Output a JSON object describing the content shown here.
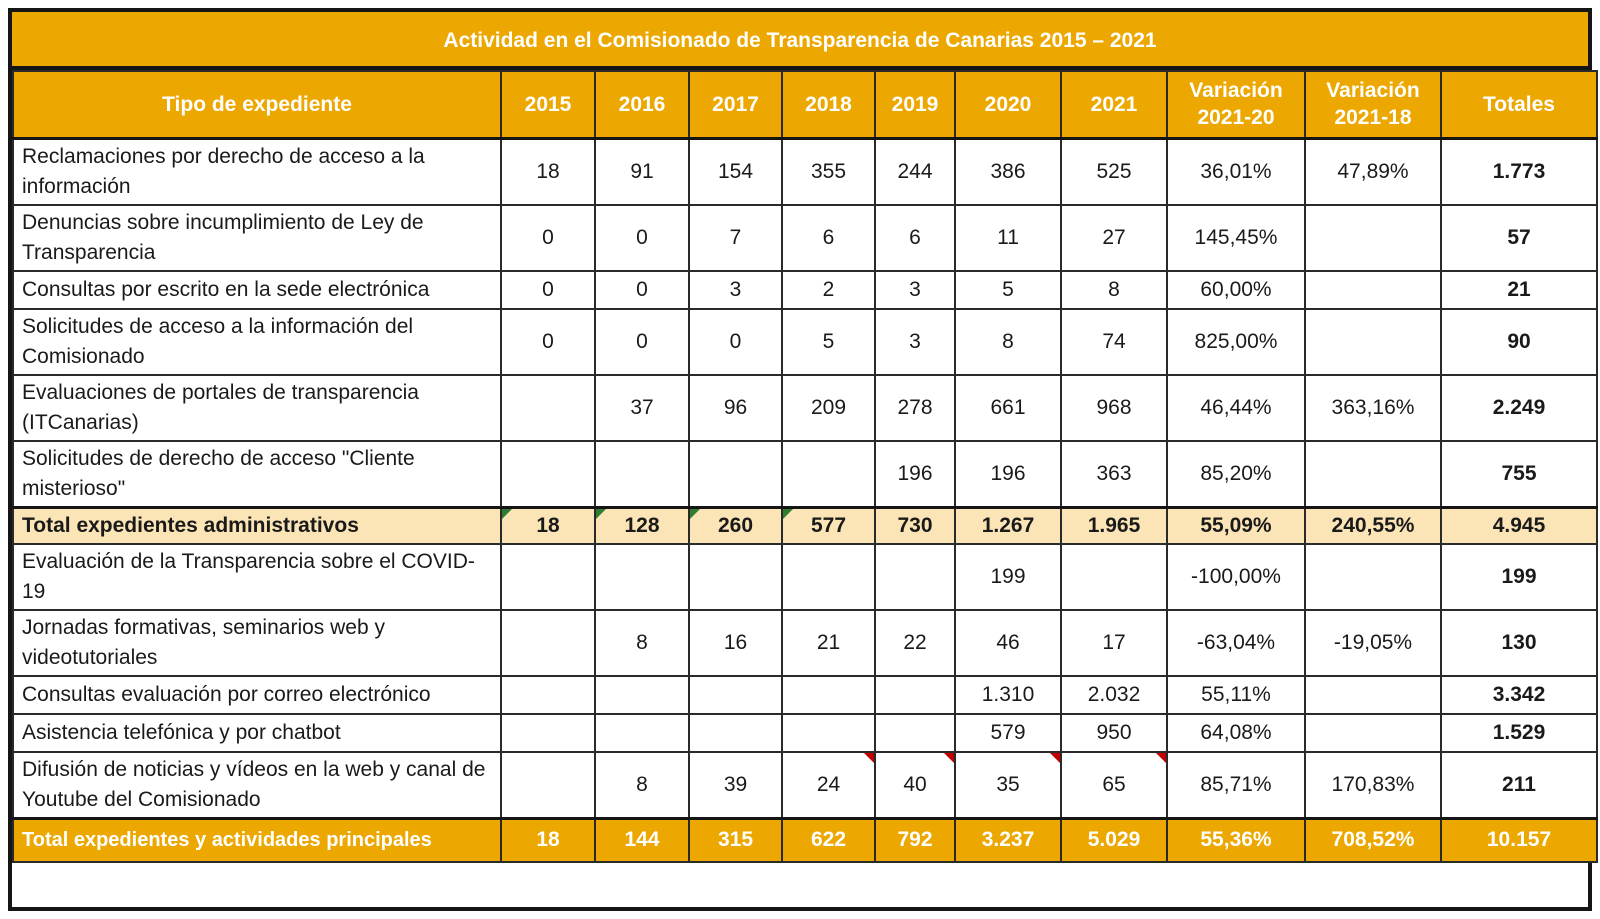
{
  "title": "Actividad en el Comisionado de Transparencia de Canarias 2015 – 2021",
  "colors": {
    "accent_orange": "#ECA800",
    "subtotal_cream": "#FBE5B6",
    "comment_marker_green": "#2E7D32",
    "comment_marker_red": "#C00000",
    "grid_line": "#2A2A2A",
    "outer_border": "#151515",
    "header_text": "#FFFFFF",
    "body_text": "#1A1A1A"
  },
  "table": {
    "columns": [
      {
        "label": "Tipo de expediente",
        "sub": ""
      },
      {
        "label": "2015",
        "sub": ""
      },
      {
        "label": "2016",
        "sub": ""
      },
      {
        "label": "2017",
        "sub": ""
      },
      {
        "label": "2018",
        "sub": ""
      },
      {
        "label": "2019",
        "sub": ""
      },
      {
        "label": "2020",
        "sub": ""
      },
      {
        "label": "2021",
        "sub": ""
      },
      {
        "label": "Variación",
        "sub": "2021-20"
      },
      {
        "label": "Variación",
        "sub": "2021-18"
      },
      {
        "label": "Totales",
        "sub": ""
      }
    ],
    "rows": [
      {
        "label": "Reclamaciones por derecho de acceso a la información",
        "values": [
          "18",
          "91",
          "154",
          "355",
          "244",
          "386",
          "525",
          "36,01%",
          "47,89%",
          "1.773"
        ],
        "style": "normal",
        "green_markers": [],
        "red_markers": []
      },
      {
        "label": "Denuncias sobre incumplimiento de Ley de Transparencia",
        "values": [
          "0",
          "0",
          "7",
          "6",
          "6",
          "11",
          "27",
          "145,45%",
          "",
          "57"
        ],
        "style": "normal",
        "green_markers": [],
        "red_markers": []
      },
      {
        "label": "Consultas por escrito en la sede electrónica",
        "values": [
          "0",
          "0",
          "3",
          "2",
          "3",
          "5",
          "8",
          "60,00%",
          "",
          "21"
        ],
        "style": "normal",
        "green_markers": [],
        "red_markers": []
      },
      {
        "label": "Solicitudes de acceso a la información del Comisionado",
        "values": [
          "0",
          "0",
          "0",
          "5",
          "3",
          "8",
          "74",
          "825,00%",
          "",
          "90"
        ],
        "style": "normal",
        "green_markers": [],
        "red_markers": []
      },
      {
        "label": "Evaluaciones de portales de transparencia (ITCanarias)",
        "values": [
          "",
          "37",
          "96",
          "209",
          "278",
          "661",
          "968",
          "46,44%",
          "363,16%",
          "2.249"
        ],
        "style": "normal",
        "green_markers": [],
        "red_markers": []
      },
      {
        "label": "Solicitudes de derecho de acceso \"Cliente misterioso\"",
        "values": [
          "",
          "",
          "",
          "",
          "196",
          "196",
          "363",
          "85,20%",
          "",
          "755"
        ],
        "style": "normal",
        "green_markers": [],
        "red_markers": []
      },
      {
        "label": "Total expedientes administrativos",
        "values": [
          "18",
          "128",
          "260",
          "577",
          "730",
          "1.267",
          "1.965",
          "55,09%",
          "240,55%",
          "4.945"
        ],
        "style": "subtotal",
        "green_markers": [
          0,
          1,
          2,
          3
        ],
        "red_markers": []
      },
      {
        "label": "Evaluación de la Transparencia sobre el COVID-19",
        "values": [
          "",
          "",
          "",
          "",
          "",
          "199",
          "",
          "-100,00%",
          "",
          "199"
        ],
        "style": "normal",
        "green_markers": [],
        "red_markers": []
      },
      {
        "label": "Jornadas formativas, seminarios web  y videotutoriales",
        "values": [
          "",
          "8",
          "16",
          "21",
          "22",
          "46",
          "17",
          "-63,04%",
          "-19,05%",
          "130"
        ],
        "style": "normal",
        "green_markers": [],
        "red_markers": []
      },
      {
        "label": "Consultas evaluación por correo electrónico",
        "values": [
          "",
          "",
          "",
          "",
          "",
          "1.310",
          "2.032",
          "55,11%",
          "",
          "3.342"
        ],
        "style": "normal",
        "green_markers": [],
        "red_markers": []
      },
      {
        "label": "Asistencia telefónica y por chatbot",
        "values": [
          "",
          "",
          "",
          "",
          "",
          "579",
          "950",
          "64,08%",
          "",
          "1.529"
        ],
        "style": "normal",
        "green_markers": [],
        "red_markers": []
      },
      {
        "label": "Difusión de noticias y vídeos en la  web y canal de Youtube del Comisionado",
        "values": [
          "",
          "8",
          "39",
          "24",
          "40",
          "35",
          "65",
          "85,71%",
          "170,83%",
          "211"
        ],
        "style": "normal",
        "green_markers": [],
        "red_markers": [
          3,
          4,
          5,
          6
        ]
      },
      {
        "label": "Total expedientes y actividades principales",
        "values": [
          "18",
          "144",
          "315",
          "622",
          "792",
          "3.237",
          "5.029",
          "55,36%",
          "708,52%",
          "10.157"
        ],
        "style": "grandtotal",
        "green_markers": [],
        "red_markers": []
      }
    ]
  }
}
